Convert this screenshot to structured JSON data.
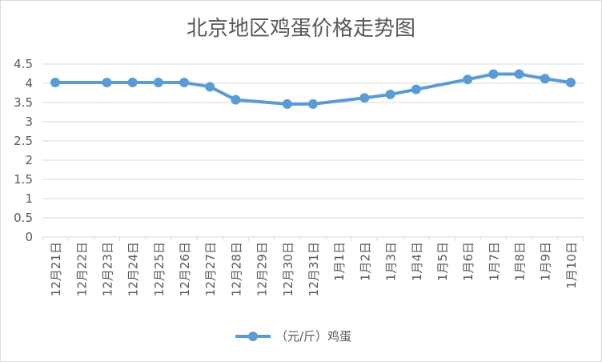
{
  "chart_data": {
    "type": "line",
    "title": "北京地区鸡蛋价格走势图",
    "xlabel": "",
    "ylabel": "",
    "ylim": [
      0,
      4.5
    ],
    "yticks": [
      "0",
      "0.5",
      "1",
      "1.5",
      "2",
      "2.5",
      "3",
      "3.5",
      "4",
      "4.5"
    ],
    "grid": true,
    "legend_position": "bottom",
    "categories": [
      "12月21日",
      "12月22日",
      "12月23日",
      "12月24日",
      "12月25日",
      "12月26日",
      "12月27日",
      "12月28日",
      "12月29日",
      "12月30日",
      "12月31日",
      "1月1日",
      "1月2日",
      "1月3日",
      "1月4日",
      "1月5日",
      "1月6日",
      "1月7日",
      "1月8日",
      "1月9日",
      "1月10日"
    ],
    "series": [
      {
        "name": "（元/斤）鸡蛋",
        "color": "#5b9bd5",
        "values": [
          4.02,
          null,
          4.02,
          4.02,
          4.02,
          4.02,
          3.91,
          3.57,
          null,
          3.46,
          3.46,
          null,
          3.62,
          3.71,
          3.84,
          null,
          4.1,
          4.24,
          4.24,
          4.12,
          4.02
        ]
      }
    ]
  }
}
